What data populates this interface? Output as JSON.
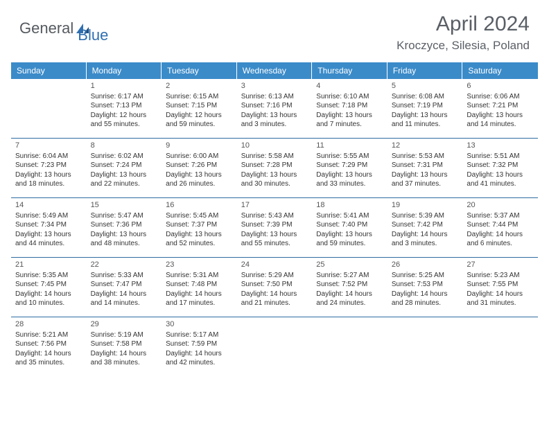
{
  "logo": {
    "part1": "General",
    "part2": "Blue"
  },
  "title": "April 2024",
  "location": "Kroczyce, Silesia, Poland",
  "colors": {
    "header_bg": "#3b8bc9",
    "header_text": "#ffffff",
    "rule": "#2d6aa0",
    "body_text": "#333333",
    "title_text": "#5a5f66",
    "logo_gray": "#555a60",
    "logo_blue": "#2f6fb0"
  },
  "days_of_week": [
    "Sunday",
    "Monday",
    "Tuesday",
    "Wednesday",
    "Thursday",
    "Friday",
    "Saturday"
  ],
  "weeks": [
    [
      null,
      {
        "n": "1",
        "sr": "Sunrise: 6:17 AM",
        "ss": "Sunset: 7:13 PM",
        "d1": "Daylight: 12 hours",
        "d2": "and 55 minutes."
      },
      {
        "n": "2",
        "sr": "Sunrise: 6:15 AM",
        "ss": "Sunset: 7:15 PM",
        "d1": "Daylight: 12 hours",
        "d2": "and 59 minutes."
      },
      {
        "n": "3",
        "sr": "Sunrise: 6:13 AM",
        "ss": "Sunset: 7:16 PM",
        "d1": "Daylight: 13 hours",
        "d2": "and 3 minutes."
      },
      {
        "n": "4",
        "sr": "Sunrise: 6:10 AM",
        "ss": "Sunset: 7:18 PM",
        "d1": "Daylight: 13 hours",
        "d2": "and 7 minutes."
      },
      {
        "n": "5",
        "sr": "Sunrise: 6:08 AM",
        "ss": "Sunset: 7:19 PM",
        "d1": "Daylight: 13 hours",
        "d2": "and 11 minutes."
      },
      {
        "n": "6",
        "sr": "Sunrise: 6:06 AM",
        "ss": "Sunset: 7:21 PM",
        "d1": "Daylight: 13 hours",
        "d2": "and 14 minutes."
      }
    ],
    [
      {
        "n": "7",
        "sr": "Sunrise: 6:04 AM",
        "ss": "Sunset: 7:23 PM",
        "d1": "Daylight: 13 hours",
        "d2": "and 18 minutes."
      },
      {
        "n": "8",
        "sr": "Sunrise: 6:02 AM",
        "ss": "Sunset: 7:24 PM",
        "d1": "Daylight: 13 hours",
        "d2": "and 22 minutes."
      },
      {
        "n": "9",
        "sr": "Sunrise: 6:00 AM",
        "ss": "Sunset: 7:26 PM",
        "d1": "Daylight: 13 hours",
        "d2": "and 26 minutes."
      },
      {
        "n": "10",
        "sr": "Sunrise: 5:58 AM",
        "ss": "Sunset: 7:28 PM",
        "d1": "Daylight: 13 hours",
        "d2": "and 30 minutes."
      },
      {
        "n": "11",
        "sr": "Sunrise: 5:55 AM",
        "ss": "Sunset: 7:29 PM",
        "d1": "Daylight: 13 hours",
        "d2": "and 33 minutes."
      },
      {
        "n": "12",
        "sr": "Sunrise: 5:53 AM",
        "ss": "Sunset: 7:31 PM",
        "d1": "Daylight: 13 hours",
        "d2": "and 37 minutes."
      },
      {
        "n": "13",
        "sr": "Sunrise: 5:51 AM",
        "ss": "Sunset: 7:32 PM",
        "d1": "Daylight: 13 hours",
        "d2": "and 41 minutes."
      }
    ],
    [
      {
        "n": "14",
        "sr": "Sunrise: 5:49 AM",
        "ss": "Sunset: 7:34 PM",
        "d1": "Daylight: 13 hours",
        "d2": "and 44 minutes."
      },
      {
        "n": "15",
        "sr": "Sunrise: 5:47 AM",
        "ss": "Sunset: 7:36 PM",
        "d1": "Daylight: 13 hours",
        "d2": "and 48 minutes."
      },
      {
        "n": "16",
        "sr": "Sunrise: 5:45 AM",
        "ss": "Sunset: 7:37 PM",
        "d1": "Daylight: 13 hours",
        "d2": "and 52 minutes."
      },
      {
        "n": "17",
        "sr": "Sunrise: 5:43 AM",
        "ss": "Sunset: 7:39 PM",
        "d1": "Daylight: 13 hours",
        "d2": "and 55 minutes."
      },
      {
        "n": "18",
        "sr": "Sunrise: 5:41 AM",
        "ss": "Sunset: 7:40 PM",
        "d1": "Daylight: 13 hours",
        "d2": "and 59 minutes."
      },
      {
        "n": "19",
        "sr": "Sunrise: 5:39 AM",
        "ss": "Sunset: 7:42 PM",
        "d1": "Daylight: 14 hours",
        "d2": "and 3 minutes."
      },
      {
        "n": "20",
        "sr": "Sunrise: 5:37 AM",
        "ss": "Sunset: 7:44 PM",
        "d1": "Daylight: 14 hours",
        "d2": "and 6 minutes."
      }
    ],
    [
      {
        "n": "21",
        "sr": "Sunrise: 5:35 AM",
        "ss": "Sunset: 7:45 PM",
        "d1": "Daylight: 14 hours",
        "d2": "and 10 minutes."
      },
      {
        "n": "22",
        "sr": "Sunrise: 5:33 AM",
        "ss": "Sunset: 7:47 PM",
        "d1": "Daylight: 14 hours",
        "d2": "and 14 minutes."
      },
      {
        "n": "23",
        "sr": "Sunrise: 5:31 AM",
        "ss": "Sunset: 7:48 PM",
        "d1": "Daylight: 14 hours",
        "d2": "and 17 minutes."
      },
      {
        "n": "24",
        "sr": "Sunrise: 5:29 AM",
        "ss": "Sunset: 7:50 PM",
        "d1": "Daylight: 14 hours",
        "d2": "and 21 minutes."
      },
      {
        "n": "25",
        "sr": "Sunrise: 5:27 AM",
        "ss": "Sunset: 7:52 PM",
        "d1": "Daylight: 14 hours",
        "d2": "and 24 minutes."
      },
      {
        "n": "26",
        "sr": "Sunrise: 5:25 AM",
        "ss": "Sunset: 7:53 PM",
        "d1": "Daylight: 14 hours",
        "d2": "and 28 minutes."
      },
      {
        "n": "27",
        "sr": "Sunrise: 5:23 AM",
        "ss": "Sunset: 7:55 PM",
        "d1": "Daylight: 14 hours",
        "d2": "and 31 minutes."
      }
    ],
    [
      {
        "n": "28",
        "sr": "Sunrise: 5:21 AM",
        "ss": "Sunset: 7:56 PM",
        "d1": "Daylight: 14 hours",
        "d2": "and 35 minutes."
      },
      {
        "n": "29",
        "sr": "Sunrise: 5:19 AM",
        "ss": "Sunset: 7:58 PM",
        "d1": "Daylight: 14 hours",
        "d2": "and 38 minutes."
      },
      {
        "n": "30",
        "sr": "Sunrise: 5:17 AM",
        "ss": "Sunset: 7:59 PM",
        "d1": "Daylight: 14 hours",
        "d2": "and 42 minutes."
      },
      null,
      null,
      null,
      null
    ]
  ]
}
